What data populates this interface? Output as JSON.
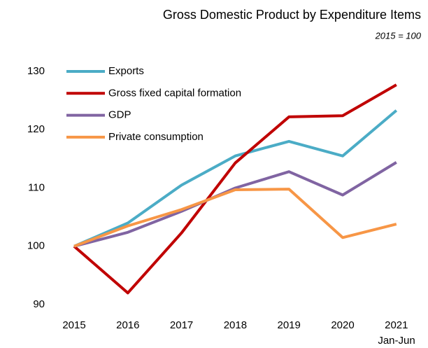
{
  "chart_data": {
    "type": "line",
    "title": "Gross Domestic Product by Expenditure Items",
    "subtitle": "2015 = 100",
    "categories": [
      "2015",
      "2016",
      "2017",
      "2018",
      "2019",
      "2020",
      "2021"
    ],
    "annotations": [
      "Jan-Jun"
    ],
    "series": [
      {
        "name": "Exports",
        "color": "#4bacc6",
        "values": [
          100,
          104,
          110.5,
          115.5,
          118,
          115.5,
          123.3
        ]
      },
      {
        "name": "Gross fixed capital formation",
        "color": "#c00000",
        "values": [
          100,
          92,
          102.3,
          114.3,
          122.2,
          122.4,
          127.7
        ]
      },
      {
        "name": "GDP",
        "color": "#8064a2",
        "values": [
          100,
          102.4,
          106,
          110,
          112.8,
          108.8,
          114.4
        ]
      },
      {
        "name": "Private consumption",
        "color": "#f79646",
        "values": [
          100,
          103.5,
          106.3,
          109.7,
          109.8,
          101.5,
          103.8
        ]
      }
    ],
    "ylim": [
      90,
      130
    ],
    "yticks": [
      90,
      100,
      110,
      120,
      130
    ],
    "grid": false,
    "legend": "top-left"
  }
}
